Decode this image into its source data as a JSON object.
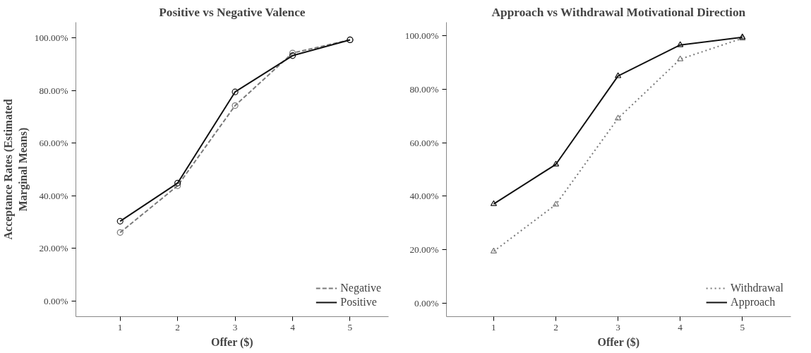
{
  "chart_data": [
    {
      "type": "line",
      "title": "Positive vs Negative Valence",
      "xlabel": "Offer ($)",
      "ylabel": "Acceptance Rates (Estimated Marginal Means)",
      "x": [
        1,
        2,
        3,
        4,
        5
      ],
      "xlim": [
        0.23,
        5.67
      ],
      "xticks": [
        1,
        2,
        3,
        4,
        5
      ],
      "ylim": [
        -6,
        106
      ],
      "yticks": [
        {
          "value": 0,
          "label": "0.00%"
        },
        {
          "value": 20,
          "label": "20.00%"
        },
        {
          "value": 40,
          "label": "40.00%"
        },
        {
          "value": 60,
          "label": "60.00%"
        },
        {
          "value": 80,
          "label": "80.00%"
        },
        {
          "value": 100,
          "label": "100.00%"
        }
      ],
      "grid": false,
      "legend": "bottom right",
      "marker": "circle",
      "series": [
        {
          "name": "Negative",
          "color": "#7a7a7a",
          "line_style": "dashed",
          "values": [
            26.0,
            43.8,
            74.3,
            94.3,
            99.3
          ]
        },
        {
          "name": "Positive",
          "color": "#111111",
          "line_style": "solid",
          "values": [
            30.3,
            44.8,
            79.5,
            93.3,
            99.3
          ]
        }
      ]
    },
    {
      "type": "line",
      "title": "Approach vs Withdrawal Motivational Direction",
      "xlabel": "Offer ($)",
      "x": [
        1,
        2,
        3,
        4,
        5
      ],
      "xlim": [
        0.24,
        5.78
      ],
      "xticks": [
        1,
        2,
        3,
        4,
        5
      ],
      "ylim": [
        -5,
        105
      ],
      "yticks": [
        {
          "value": 0,
          "label": "0.00%"
        },
        {
          "value": 20,
          "label": "20.00%"
        },
        {
          "value": 40,
          "label": "40.00%"
        },
        {
          "value": 60,
          "label": "60.00%"
        },
        {
          "value": 80,
          "label": "80.00%"
        },
        {
          "value": 100,
          "label": "100.00%"
        }
      ],
      "grid": false,
      "legend": "bottom right",
      "marker": "triangle",
      "series": [
        {
          "name": "Withdrawal",
          "color": "#7a7a7a",
          "line_style": "dotted",
          "values": [
            19.4,
            36.9,
            69.1,
            91.2,
            99.0
          ]
        },
        {
          "name": "Approach",
          "color": "#111111",
          "line_style": "solid",
          "values": [
            37.1,
            51.9,
            84.9,
            96.5,
            99.4
          ]
        }
      ]
    }
  ]
}
